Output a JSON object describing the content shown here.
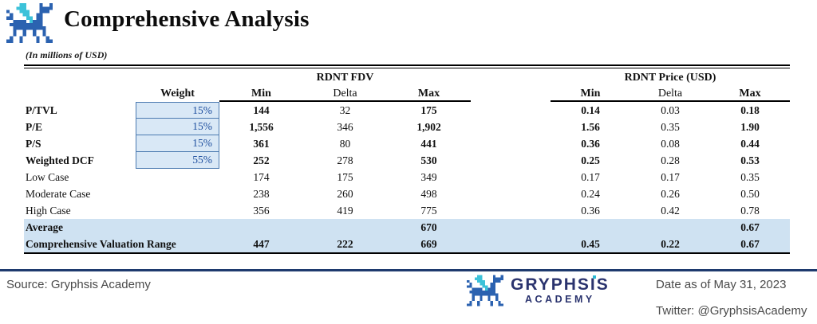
{
  "header": {
    "title": "Comprehensive Analysis",
    "units_note": "(In millions of USD)"
  },
  "table": {
    "group_headers": [
      "RDNT FDV",
      "RDNT Price (USD)"
    ],
    "columns": [
      "Weight",
      "Min",
      "Delta",
      "Max",
      "Min",
      "Delta",
      "Max"
    ],
    "rows": [
      {
        "label": "P/TVL",
        "weight": "15%",
        "fdv": [
          "144",
          "32",
          "175"
        ],
        "price": [
          "0.14",
          "0.03",
          "0.18"
        ],
        "style": "metric"
      },
      {
        "label": "P/E",
        "weight": "15%",
        "fdv": [
          "1,556",
          "346",
          "1,902"
        ],
        "price": [
          "1.56",
          "0.35",
          "1.90"
        ],
        "style": "metric"
      },
      {
        "label": "P/S",
        "weight": "15%",
        "fdv": [
          "361",
          "80",
          "441"
        ],
        "price": [
          "0.36",
          "0.08",
          "0.44"
        ],
        "style": "metric"
      },
      {
        "label": "Weighted DCF",
        "weight": "55%",
        "fdv": [
          "252",
          "278",
          "530"
        ],
        "price": [
          "0.25",
          "0.28",
          "0.53"
        ],
        "style": "metric"
      },
      {
        "label": "Low Case",
        "weight": "",
        "fdv": [
          "174",
          "175",
          "349"
        ],
        "price": [
          "0.17",
          "0.17",
          "0.35"
        ],
        "style": "case"
      },
      {
        "label": "Moderate Case",
        "weight": "",
        "fdv": [
          "238",
          "260",
          "498"
        ],
        "price": [
          "0.24",
          "0.26",
          "0.50"
        ],
        "style": "case"
      },
      {
        "label": "High Case",
        "weight": "",
        "fdv": [
          "356",
          "419",
          "775"
        ],
        "price": [
          "0.36",
          "0.42",
          "0.78"
        ],
        "style": "case"
      },
      {
        "label": "Average",
        "weight": "",
        "fdv": [
          "",
          "",
          "670"
        ],
        "price": [
          "",
          "",
          "0.67"
        ],
        "style": "total"
      },
      {
        "label": "Comprehensive Valuation Range",
        "weight": "",
        "fdv": [
          "447",
          "222",
          "669"
        ],
        "price": [
          "0.45",
          "0.22",
          "0.67"
        ],
        "style": "total"
      }
    ]
  },
  "footer": {
    "source": "Source: Gryphsis Academy",
    "brand_name": "GRYPHSIS",
    "brand_sub": "ACADEMY",
    "date": "Date as of May 31, 2023",
    "twitter": "Twitter: @GryphsisAcademy"
  },
  "colors": {
    "weight_cell_bg": "#d9e8f6",
    "weight_cell_border": "#4b7ab0",
    "weight_text": "#1d4e9e",
    "highlight_row_bg": "#cfe2f2",
    "footer_rule": "#1e3a6e",
    "logo_blue": "#2b62b0",
    "logo_teal": "#3cc2d9",
    "brand_navy": "#2a336e"
  }
}
